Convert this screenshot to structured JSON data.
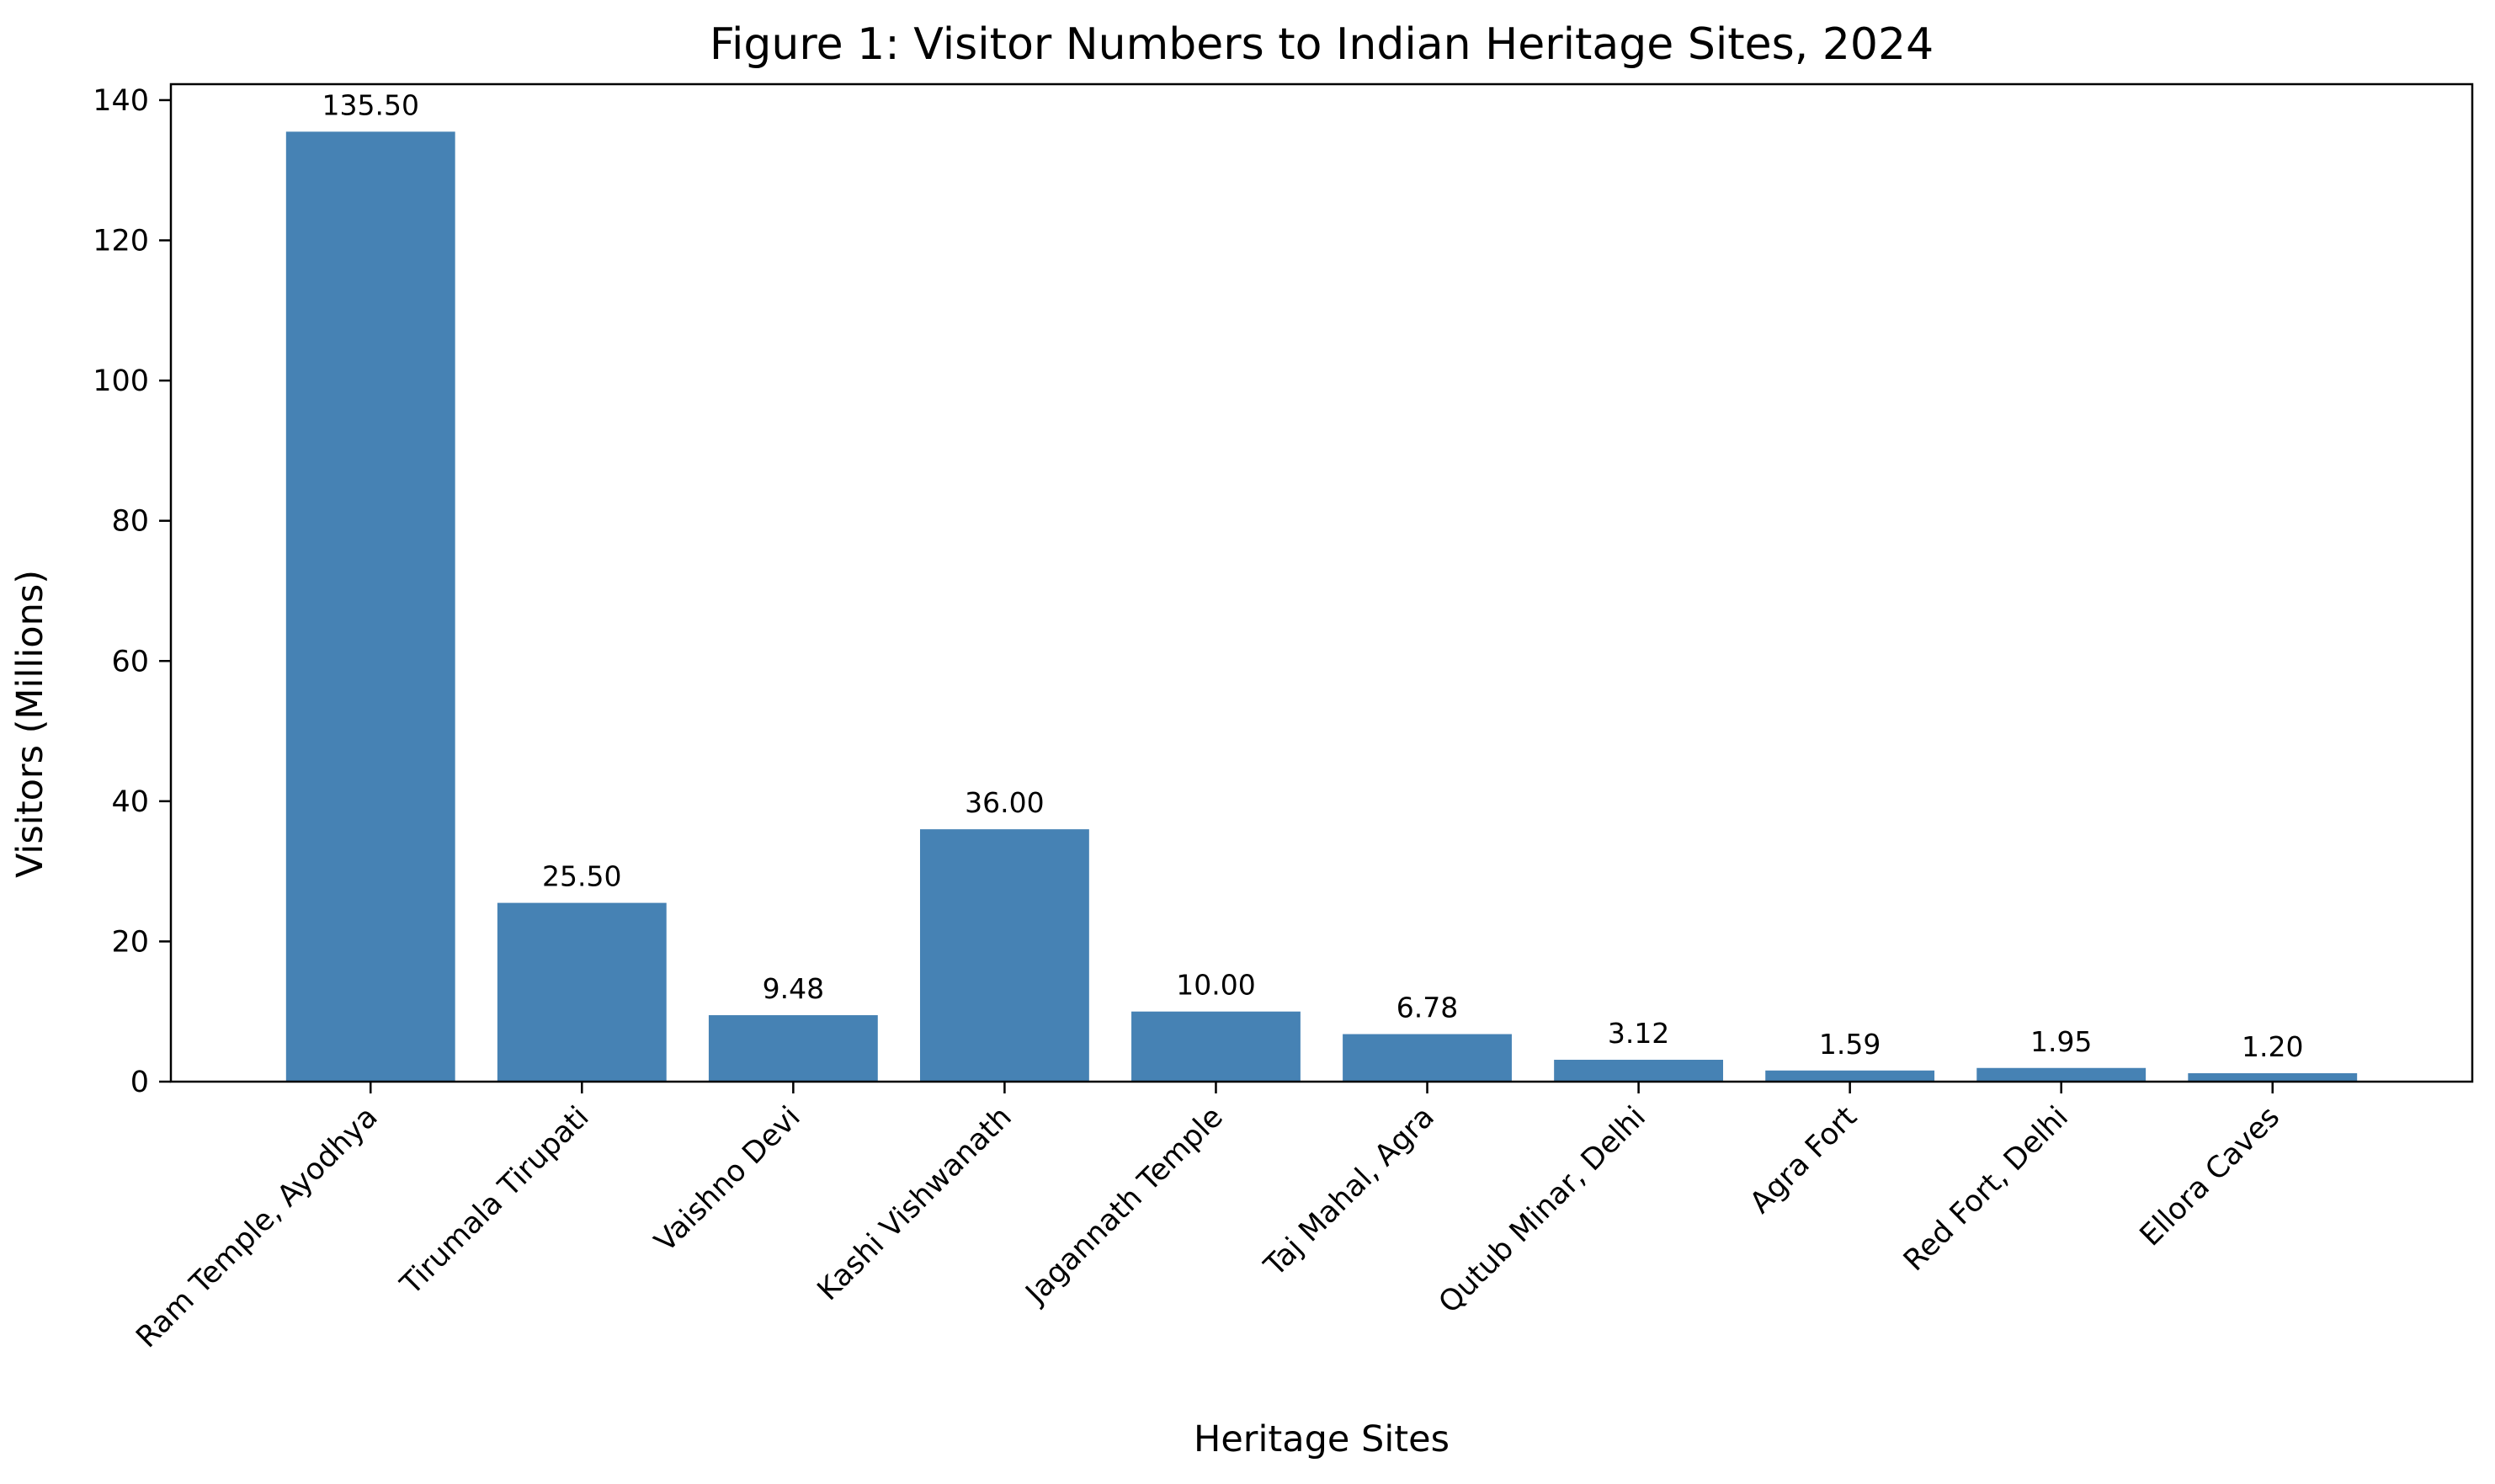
{
  "chart_data": {
    "type": "bar",
    "title": "Figure 1: Visitor Numbers to Indian Heritage Sites, 2024",
    "xlabel": "Heritage Sites",
    "ylabel": "Visitors (Millions)",
    "categories": [
      "Ram Temple, Ayodhya",
      "Tirumala Tirupati",
      "Vaishno Devi",
      "Kashi Vishwanath",
      "Jagannath Temple",
      "Taj Mahal, Agra",
      "Qutub Minar, Delhi",
      "Agra Fort",
      "Red Fort, Delhi",
      "Ellora Caves"
    ],
    "values": [
      135.5,
      25.5,
      9.48,
      36.0,
      10.0,
      6.78,
      3.12,
      1.59,
      1.95,
      1.2
    ],
    "value_labels": [
      "135.50",
      "25.50",
      "9.48",
      "36.00",
      "10.00",
      "6.78",
      "3.12",
      "1.59",
      "1.95",
      "1.20"
    ],
    "ylim": [
      0,
      142.275
    ],
    "yticks": [
      0,
      20,
      40,
      60,
      80,
      100,
      120,
      140
    ],
    "bar_color": "#4682b4",
    "grid": false,
    "legend": "none"
  }
}
